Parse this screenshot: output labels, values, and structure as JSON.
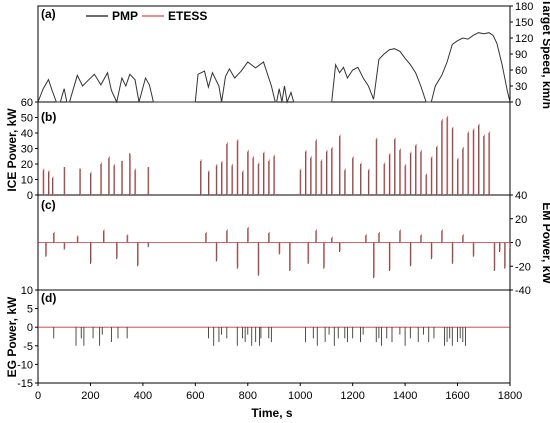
{
  "chart_data": {
    "type": "line",
    "xlabel": "Time, s",
    "xlim": [
      0,
      1800
    ],
    "xticks": [
      0,
      200,
      400,
      600,
      800,
      1000,
      1200,
      1400,
      1600,
      1800
    ],
    "legend": {
      "placement": "top-left",
      "entries": [
        {
          "name": "PMP",
          "color": "#3a3a3a"
        },
        {
          "name": "ETESS",
          "color": "#e06666"
        }
      ]
    },
    "panels": [
      {
        "label": "(a)",
        "ylabel": "",
        "ylabel_right": "Target Speed, km/h",
        "ylim": [
          0,
          180
        ],
        "yticks_right": [
          0,
          30,
          60,
          90,
          120,
          150,
          180
        ],
        "series": [
          {
            "name": "Target Speed",
            "color": "#333333",
            "x": [
              0,
              20,
              40,
              55,
              70,
              85,
              100,
              110,
              120,
              150,
              170,
              190,
              215,
              240,
              265,
              280,
              300,
              320,
              335,
              350,
              370,
              385,
              410,
              425,
              440,
              450,
              600,
              610,
              635,
              650,
              665,
              690,
              700,
              715,
              730,
              750,
              775,
              800,
              830,
              860,
              890,
              905,
              910,
              920,
              930,
              940,
              950,
              965,
              975,
              990,
              1000,
              1120,
              1135,
              1150,
              1165,
              1180,
              1200,
              1220,
              1240,
              1260,
              1280,
              1300,
              1320,
              1340,
              1360,
              1380,
              1400,
              1420,
              1440,
              1460,
              1480,
              1500,
              1515,
              1540,
              1560,
              1580,
              1600,
              1620,
              1640,
              1660,
              1680,
              1700,
              1720,
              1735,
              1750,
              1770,
              1790,
              1800
            ],
            "y": [
              0,
              25,
              42,
              20,
              0,
              0,
              25,
              0,
              0,
              50,
              30,
              40,
              52,
              32,
              55,
              22,
              0,
              45,
              30,
              52,
              42,
              0,
              45,
              32,
              0,
              0,
              0,
              52,
              58,
              28,
              55,
              30,
              0,
              48,
              62,
              45,
              58,
              75,
              64,
              75,
              30,
              0,
              0,
              25,
              0,
              30,
              0,
              18,
              0,
              0,
              0,
              0,
              70,
              55,
              65,
              45,
              60,
              65,
              45,
              30,
              5,
              80,
              90,
              98,
              100,
              95,
              82,
              70,
              55,
              30,
              0,
              0,
              30,
              50,
              75,
              108,
              115,
              120,
              118,
              125,
              130,
              128,
              130,
              125,
              110,
              70,
              20,
              0
            ]
          }
        ]
      },
      {
        "label": "(b)",
        "ylabel": "ICE Power, kW",
        "ylim": [
          0,
          60
        ],
        "yticks": [
          0,
          10,
          20,
          30,
          40,
          50,
          60
        ],
        "series": [
          {
            "name": "PMP",
            "color": "#3a3a3a",
            "x": [
              20,
              40,
              55,
              100,
              160,
              200,
              240,
              270,
              290,
              320,
              350,
              370,
              420,
              620,
              650,
              680,
              700,
              720,
              740,
              760,
              780,
              800,
              820,
              840,
              860,
              880,
              900,
              1000,
              1020,
              1040,
              1060,
              1080,
              1100,
              1120,
              1150,
              1170,
              1200,
              1230,
              1260,
              1290,
              1320,
              1340,
              1360,
              1380,
              1400,
              1420,
              1440,
              1460,
              1480,
              1500,
              1520,
              1540,
              1560,
              1580,
              1600,
              1620,
              1640,
              1660,
              1680,
              1700,
              1720
            ],
            "y": [
              16,
              15,
              11,
              18,
              17,
              14,
              20,
              24,
              19,
              22,
              27,
              16,
              18,
              22,
              15,
              19,
              21,
              33,
              19,
              35,
              15,
              28,
              24,
              20,
              27,
              22,
              25,
              16,
              28,
              24,
              35,
              22,
              28,
              30,
              38,
              16,
              24,
              20,
              16,
              36,
              20,
              26,
              36,
              29,
              19,
              27,
              32,
              28,
              13,
              24,
              31,
              48,
              50,
              43,
              23,
              30,
              40,
              42,
              45,
              38,
              40
            ]
          },
          {
            "name": "ETESS",
            "color": "#e06666",
            "x": [
              20,
              40,
              55,
              100,
              160,
              200,
              240,
              270,
              290,
              320,
              350,
              370,
              420,
              620,
              650,
              680,
              700,
              720,
              740,
              760,
              780,
              800,
              820,
              840,
              860,
              880,
              900,
              1000,
              1020,
              1040,
              1060,
              1080,
              1100,
              1120,
              1150,
              1170,
              1200,
              1230,
              1260,
              1290,
              1320,
              1340,
              1360,
              1380,
              1400,
              1420,
              1440,
              1460,
              1480,
              1500,
              1520,
              1540,
              1560,
              1580,
              1600,
              1620,
              1640,
              1660,
              1680,
              1700,
              1720
            ],
            "y": [
              17,
              16,
              12,
              18,
              17,
              15,
              21,
              25,
              20,
              22,
              26,
              17,
              18,
              23,
              16,
              20,
              22,
              34,
              20,
              36,
              16,
              29,
              25,
              21,
              28,
              23,
              26,
              17,
              29,
              25,
              36,
              23,
              29,
              31,
              39,
              17,
              25,
              21,
              17,
              37,
              21,
              27,
              37,
              30,
              20,
              28,
              33,
              29,
              14,
              25,
              32,
              49,
              51,
              44,
              24,
              31,
              41,
              43,
              46,
              39,
              41
            ]
          }
        ]
      },
      {
        "label": "(c)",
        "ylabel_right": "EM Power, kW",
        "ylim": [
          -40,
          40
        ],
        "yticks_right": [
          -40,
          -20,
          0,
          20,
          40
        ],
        "series": [
          {
            "name": "PMP",
            "color": "#3a3a3a",
            "x": [
              0,
              30,
              60,
              100,
              150,
              200,
              250,
              300,
              340,
              380,
              420,
              600,
              640,
              680,
              720,
              760,
              800,
              840,
              880,
              920,
              960,
              1000,
              1030,
              1060,
              1090,
              1120,
              1150,
              1180,
              1200,
              1250,
              1280,
              1300,
              1340,
              1380,
              1420,
              1460,
              1500,
              1540,
              1580,
              1620,
              1660,
              1700,
              1740,
              1760,
              1780,
              1800
            ],
            "y": [
              0,
              -12,
              8,
              -6,
              5,
              -18,
              10,
              -14,
              6,
              -20,
              -4,
              0,
              8,
              -16,
              10,
              -22,
              12,
              -28,
              8,
              -10,
              -24,
              0,
              -18,
              10,
              -22,
              4,
              -8,
              0,
              0,
              6,
              -30,
              8,
              -24,
              10,
              -20,
              6,
              -14,
              10,
              -18,
              6,
              -12,
              0,
              -24,
              -8,
              -22,
              -5
            ]
          },
          {
            "name": "ETESS",
            "color": "#e06666",
            "x": [
              0,
              30,
              60,
              100,
              150,
              200,
              250,
              300,
              340,
              380,
              420,
              600,
              640,
              680,
              720,
              760,
              800,
              840,
              880,
              920,
              960,
              1000,
              1030,
              1060,
              1090,
              1120,
              1150,
              1180,
              1200,
              1250,
              1280,
              1300,
              1340,
              1380,
              1420,
              1460,
              1500,
              1540,
              1580,
              1620,
              1660,
              1700,
              1740,
              1760,
              1780,
              1800
            ],
            "y": [
              0,
              -11,
              9,
              -5,
              6,
              -17,
              11,
              -13,
              7,
              -19,
              -3,
              0,
              9,
              -15,
              11,
              -21,
              13,
              -27,
              9,
              -9,
              -23,
              0,
              -17,
              11,
              -21,
              5,
              -7,
              0,
              0,
              7,
              -29,
              9,
              -23,
              11,
              -19,
              7,
              -13,
              11,
              -17,
              7,
              -11,
              0,
              -23,
              -7,
              -21,
              -4
            ]
          }
        ]
      },
      {
        "label": "(d)",
        "ylabel": "EG Power, kW",
        "ylim": [
          -15,
          10
        ],
        "yticks": [
          -15,
          -10,
          -5,
          0,
          5,
          10
        ],
        "series": [
          {
            "name": "PMP",
            "color": "#3a3a3a",
            "x": [
              60,
              145,
              165,
              175,
              210,
              235,
              245,
              280,
              305,
              340,
              650,
              670,
              690,
              700,
              720,
              760,
              780,
              790,
              800,
              815,
              830,
              845,
              850,
              880,
              890,
              1020,
              1050,
              1065,
              1095,
              1110,
              1130,
              1145,
              1170,
              1180,
              1200,
              1230,
              1240,
              1290,
              1300,
              1310,
              1330,
              1350,
              1380,
              1400,
              1420,
              1450,
              1470,
              1490,
              1510,
              1550,
              1560,
              1570,
              1580,
              1600,
              1610,
              1620,
              1630
            ],
            "y": [
              -3,
              -5,
              -3,
              -5,
              -3,
              -5,
              -2,
              -4,
              -3,
              -3,
              -3,
              -5,
              -4,
              -2,
              -3,
              -5,
              -3,
              -4,
              -2,
              -5,
              -4,
              -5,
              -3,
              -3,
              -4,
              -4,
              -3,
              -5,
              -4,
              -2,
              -5,
              -3,
              -3,
              -4,
              -3,
              -4,
              -2,
              -4,
              -3,
              -5,
              -3,
              -4,
              -2,
              -5,
              -3,
              -4,
              -2,
              -4,
              -3,
              -5,
              -4,
              -3,
              -5,
              -4,
              -3,
              -4,
              -5
            ]
          },
          {
            "name": "ETESS",
            "color": "#e06666",
            "x": [
              0,
              1800
            ],
            "y": [
              0,
              0
            ]
          }
        ]
      }
    ]
  }
}
